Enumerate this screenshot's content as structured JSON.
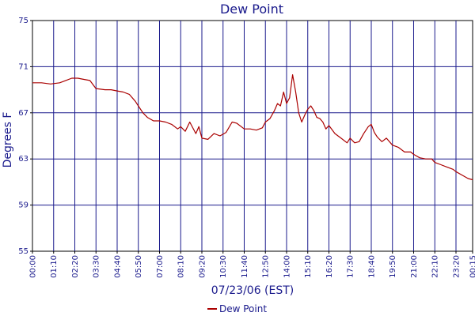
{
  "chart_data": {
    "type": "line",
    "title": "Dew Point",
    "xlabel": "07/23/06 (EST)",
    "ylabel": "Degrees F",
    "ylim": [
      55,
      75
    ],
    "yticks": [
      "55",
      "59",
      "63",
      "67",
      "71",
      "75"
    ],
    "xlim_minutes": [
      0,
      1455
    ],
    "xticks": [
      "00:00",
      "01:10",
      "02:20",
      "03:30",
      "04:40",
      "05:50",
      "07:00",
      "08:10",
      "09:20",
      "10:30",
      "11:40",
      "12:50",
      "14:00",
      "15:10",
      "16:20",
      "17:30",
      "18:40",
      "19:50",
      "21:00",
      "22:10",
      "23:20",
      "00:15"
    ],
    "grid": true,
    "legend_position": "bottom-center",
    "series": [
      {
        "name": "Dew Point",
        "color": "#aa0000",
        "x": [
          "00:00",
          "00:30",
          "01:00",
          "01:30",
          "01:50",
          "02:10",
          "02:30",
          "02:50",
          "03:10",
          "03:30",
          "04:00",
          "04:20",
          "04:40",
          "05:00",
          "05:20",
          "05:40",
          "05:50",
          "06:05",
          "06:20",
          "06:40",
          "07:00",
          "07:20",
          "07:40",
          "08:00",
          "08:10",
          "08:25",
          "08:40",
          "09:00",
          "09:10",
          "09:20",
          "09:40",
          "10:00",
          "10:20",
          "10:40",
          "11:00",
          "11:15",
          "11:40",
          "12:00",
          "12:20",
          "12:40",
          "12:50",
          "13:05",
          "13:20",
          "13:30",
          "13:40",
          "13:50",
          "14:00",
          "14:10",
          "14:20",
          "14:30",
          "14:40",
          "14:50",
          "15:00",
          "15:10",
          "15:20",
          "15:30",
          "15:40",
          "15:50",
          "16:00",
          "16:10",
          "16:20",
          "16:40",
          "17:00",
          "17:20",
          "17:30",
          "17:45",
          "18:00",
          "18:15",
          "18:30",
          "18:40",
          "18:50",
          "19:00",
          "19:15",
          "19:30",
          "19:50",
          "20:10",
          "20:30",
          "20:50",
          "21:00",
          "21:20",
          "21:40",
          "22:00",
          "22:10",
          "22:30",
          "22:50",
          "23:10",
          "23:20",
          "23:40",
          "00:00",
          "00:15"
        ],
        "y": [
          69.6,
          69.6,
          69.5,
          69.6,
          69.8,
          70.0,
          70.0,
          69.9,
          69.8,
          69.1,
          69.0,
          69.0,
          68.9,
          68.8,
          68.6,
          68.0,
          67.6,
          67.0,
          66.6,
          66.3,
          66.3,
          66.2,
          66.0,
          65.6,
          65.8,
          65.4,
          66.2,
          65.2,
          65.8,
          64.8,
          64.7,
          65.2,
          65.0,
          65.3,
          66.2,
          66.1,
          65.6,
          65.6,
          65.5,
          65.7,
          66.2,
          66.5,
          67.2,
          67.8,
          67.6,
          68.8,
          67.8,
          68.3,
          70.3,
          68.8,
          67.0,
          66.2,
          66.8,
          67.3,
          67.6,
          67.2,
          66.6,
          66.5,
          66.2,
          65.6,
          65.9,
          65.2,
          64.8,
          64.4,
          64.8,
          64.4,
          64.5,
          65.2,
          65.8,
          66.0,
          65.3,
          64.9,
          64.5,
          64.8,
          64.2,
          64.0,
          63.6,
          63.6,
          63.4,
          63.1,
          63.0,
          63.0,
          62.7,
          62.5,
          62.3,
          62.1,
          61.9,
          61.6,
          61.3,
          61.2
        ]
      }
    ]
  }
}
